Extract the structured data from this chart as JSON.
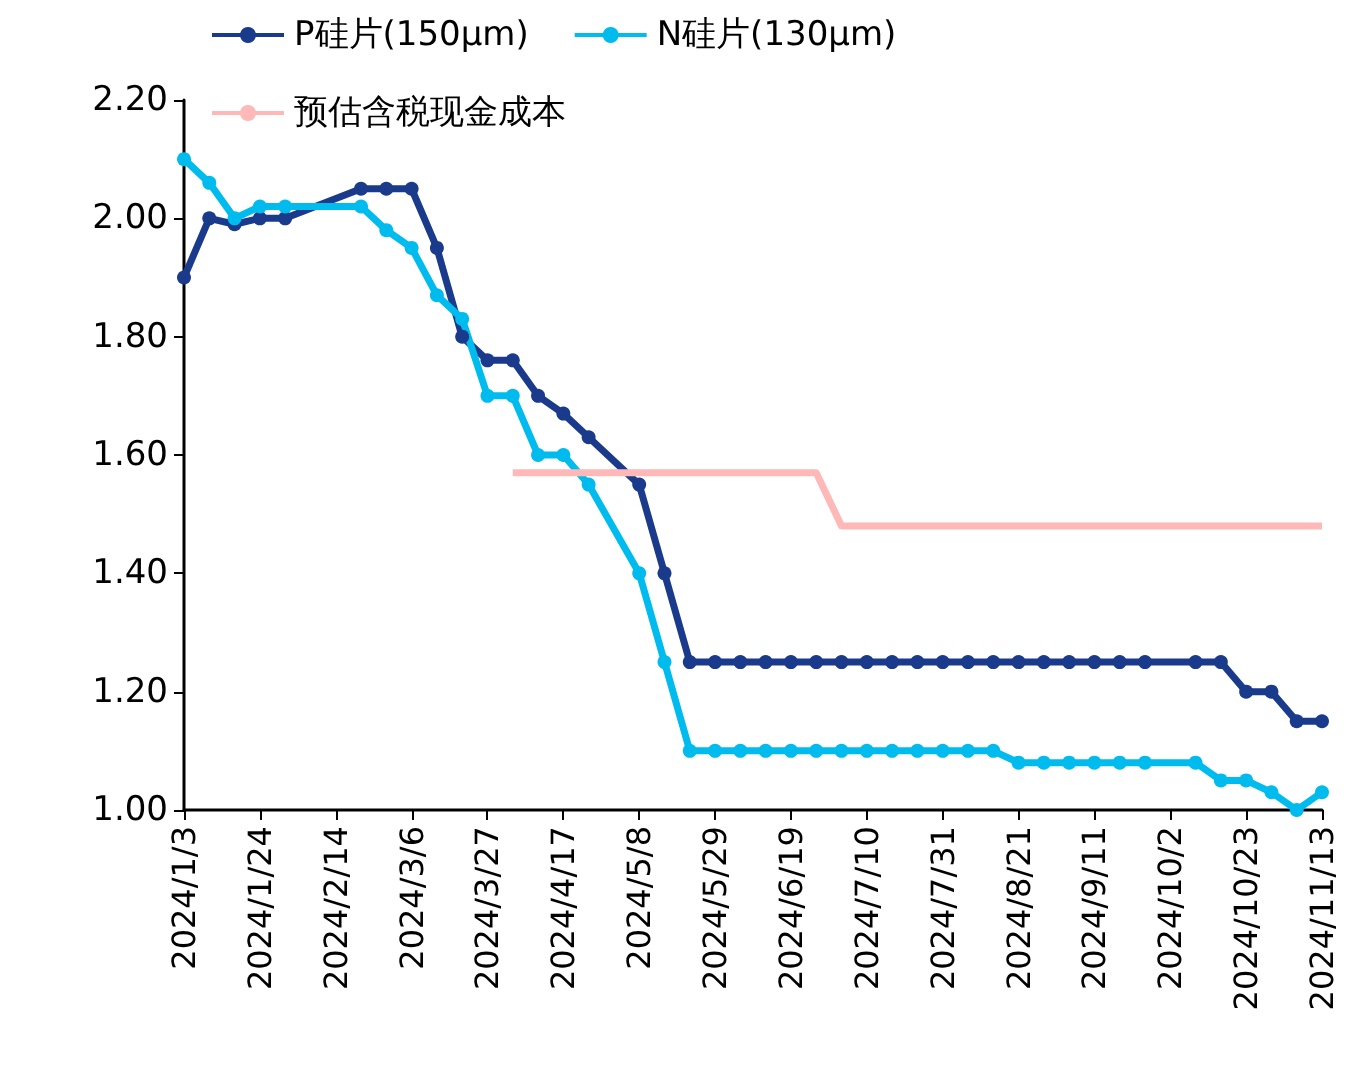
{
  "chart_data": {
    "type": "line",
    "xlim": [
      "2024-01-03",
      "2024-11-13"
    ],
    "xticks": [
      {
        "value": "2024-01-03",
        "label": "2024/1/3"
      },
      {
        "value": "2024-01-24",
        "label": "2024/1/24"
      },
      {
        "value": "2024-02-14",
        "label": "2024/2/14"
      },
      {
        "value": "2024-03-06",
        "label": "2024/3/6"
      },
      {
        "value": "2024-03-27",
        "label": "2024/3/27"
      },
      {
        "value": "2024-04-17",
        "label": "2024/4/17"
      },
      {
        "value": "2024-05-08",
        "label": "2024/5/8"
      },
      {
        "value": "2024-05-29",
        "label": "2024/5/29"
      },
      {
        "value": "2024-06-19",
        "label": "2024/6/19"
      },
      {
        "value": "2024-07-10",
        "label": "2024/7/10"
      },
      {
        "value": "2024-07-31",
        "label": "2024/7/31"
      },
      {
        "value": "2024-08-21",
        "label": "2024/8/21"
      },
      {
        "value": "2024-09-11",
        "label": "2024/9/11"
      },
      {
        "value": "2024-10-02",
        "label": "2024/10/2"
      },
      {
        "value": "2024-10-23",
        "label": "2024/10/23"
      },
      {
        "value": "2024-11-13",
        "label": "2024/11/13"
      }
    ],
    "ylim": [
      1.0,
      2.2
    ],
    "yticks": [
      {
        "value": 1.0,
        "label": "1.00"
      },
      {
        "value": 1.2,
        "label": "1.20"
      },
      {
        "value": 1.4,
        "label": "1.40"
      },
      {
        "value": 1.6,
        "label": "1.60"
      },
      {
        "value": 1.8,
        "label": "1.80"
      },
      {
        "value": 2.0,
        "label": "2.00"
      },
      {
        "value": 2.2,
        "label": "2.20"
      }
    ],
    "grid": false,
    "legend": "top",
    "series": [
      {
        "name": "P硅片(150μm)",
        "color": "#1a3a8c",
        "marker": "circle",
        "x": [
          "2024-01-03",
          "2024-01-10",
          "2024-01-17",
          "2024-01-24",
          "2024-01-31",
          "2024-02-21",
          "2024-02-28",
          "2024-03-06",
          "2024-03-13",
          "2024-03-20",
          "2024-03-27",
          "2024-04-03",
          "2024-04-10",
          "2024-04-17",
          "2024-04-24",
          "2024-05-08",
          "2024-05-15",
          "2024-05-22",
          "2024-05-29",
          "2024-06-05",
          "2024-06-12",
          "2024-06-19",
          "2024-06-26",
          "2024-07-03",
          "2024-07-10",
          "2024-07-17",
          "2024-07-24",
          "2024-07-31",
          "2024-08-07",
          "2024-08-14",
          "2024-08-21",
          "2024-08-28",
          "2024-09-04",
          "2024-09-11",
          "2024-09-18",
          "2024-09-25",
          "2024-10-09",
          "2024-10-16",
          "2024-10-23",
          "2024-10-30",
          "2024-11-06",
          "2024-11-13"
        ],
        "values": [
          1.9,
          2.0,
          1.99,
          2.0,
          2.0,
          2.05,
          2.05,
          2.05,
          1.95,
          1.8,
          1.76,
          1.76,
          1.7,
          1.67,
          1.63,
          1.55,
          1.4,
          1.25,
          1.25,
          1.25,
          1.25,
          1.25,
          1.25,
          1.25,
          1.25,
          1.25,
          1.25,
          1.25,
          1.25,
          1.25,
          1.25,
          1.25,
          1.25,
          1.25,
          1.25,
          1.25,
          1.25,
          1.25,
          1.2,
          1.2,
          1.15,
          1.15
        ]
      },
      {
        "name": "N硅片(130μm)",
        "color": "#00bcee",
        "marker": "circle",
        "x": [
          "2024-01-03",
          "2024-01-10",
          "2024-01-17",
          "2024-01-24",
          "2024-01-31",
          "2024-02-21",
          "2024-02-28",
          "2024-03-06",
          "2024-03-13",
          "2024-03-20",
          "2024-03-27",
          "2024-04-03",
          "2024-04-10",
          "2024-04-17",
          "2024-04-24",
          "2024-05-08",
          "2024-05-15",
          "2024-05-22",
          "2024-05-29",
          "2024-06-05",
          "2024-06-12",
          "2024-06-19",
          "2024-06-26",
          "2024-07-03",
          "2024-07-10",
          "2024-07-17",
          "2024-07-24",
          "2024-07-31",
          "2024-08-07",
          "2024-08-14",
          "2024-08-21",
          "2024-08-28",
          "2024-09-04",
          "2024-09-11",
          "2024-09-18",
          "2024-09-25",
          "2024-10-09",
          "2024-10-16",
          "2024-10-23",
          "2024-10-30",
          "2024-11-06",
          "2024-11-13"
        ],
        "values": [
          2.1,
          2.06,
          2.0,
          2.02,
          2.02,
          2.02,
          1.98,
          1.95,
          1.87,
          1.83,
          1.7,
          1.7,
          1.6,
          1.6,
          1.55,
          1.4,
          1.25,
          1.1,
          1.1,
          1.1,
          1.1,
          1.1,
          1.1,
          1.1,
          1.1,
          1.1,
          1.1,
          1.1,
          1.1,
          1.1,
          1.08,
          1.08,
          1.08,
          1.08,
          1.08,
          1.08,
          1.08,
          1.05,
          1.05,
          1.03,
          1.0,
          1.03
        ]
      },
      {
        "name": "预估含税现金成本",
        "color": "#ffb8b8",
        "marker": "none",
        "x": [
          "2024-04-03",
          "2024-06-26",
          "2024-07-03",
          "2024-11-13"
        ],
        "values": [
          1.57,
          1.57,
          1.48,
          1.48
        ]
      }
    ]
  }
}
